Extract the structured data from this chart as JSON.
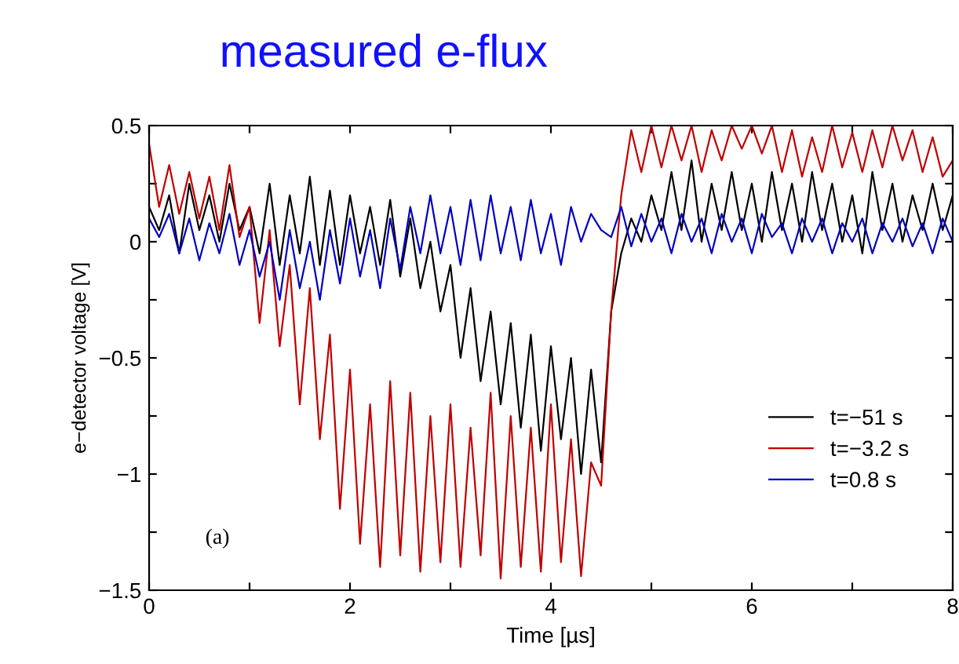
{
  "chart_data": {
    "type": "line",
    "title": "measured e-flux",
    "xlabel": "Time [µs]",
    "ylabel": "e−detector voltage [V]",
    "annotations": [
      "(a)"
    ],
    "x": [
      0.0,
      0.1,
      0.2,
      0.3,
      0.4,
      0.5,
      0.6,
      0.7,
      0.8,
      0.9,
      1.0,
      1.1,
      1.2,
      1.3,
      1.4,
      1.5,
      1.6,
      1.7,
      1.8,
      1.9,
      2.0,
      2.1,
      2.2,
      2.3,
      2.4,
      2.5,
      2.6,
      2.7,
      2.8,
      2.9,
      3.0,
      3.1,
      3.2,
      3.3,
      3.4,
      3.5,
      3.6,
      3.7,
      3.8,
      3.9,
      4.0,
      4.1,
      4.2,
      4.3,
      4.4,
      4.5,
      4.6,
      4.7,
      4.8,
      4.9,
      5.0,
      5.1,
      5.2,
      5.3,
      5.4,
      5.5,
      5.6,
      5.7,
      5.8,
      5.9,
      6.0,
      6.1,
      6.2,
      6.3,
      6.4,
      6.5,
      6.6,
      6.7,
      6.8,
      6.9,
      7.0,
      7.1,
      7.2,
      7.3,
      7.4,
      7.5,
      7.6,
      7.7,
      7.8,
      7.9,
      8.0
    ],
    "series": [
      {
        "name": "t=−51 s",
        "color": "#000000",
        "values": [
          0.15,
          0.05,
          0.2,
          -0.05,
          0.25,
          0.05,
          0.2,
          0.0,
          0.25,
          0.05,
          0.15,
          -0.05,
          0.25,
          -0.1,
          0.2,
          -0.05,
          0.28,
          -0.1,
          0.22,
          -0.1,
          0.2,
          -0.05,
          0.15,
          -0.1,
          0.18,
          -0.15,
          0.1,
          -0.2,
          0.0,
          -0.3,
          -0.1,
          -0.5,
          -0.2,
          -0.6,
          -0.3,
          -0.7,
          -0.35,
          -0.8,
          -0.4,
          -0.9,
          -0.45,
          -0.85,
          -0.5,
          -1.0,
          -0.55,
          -0.95,
          -0.3,
          -0.05,
          0.1,
          0.0,
          0.2,
          0.05,
          0.3,
          0.05,
          0.35,
          0.0,
          0.25,
          0.05,
          0.3,
          0.05,
          0.25,
          0.0,
          0.3,
          0.05,
          0.25,
          0.0,
          0.3,
          0.05,
          0.25,
          0.0,
          0.2,
          -0.05,
          0.3,
          0.05,
          0.25,
          0.0,
          0.2,
          0.05,
          0.25,
          0.05,
          0.2
        ]
      },
      {
        "name": "t=−3.2 s",
        "color": "#c00000",
        "values": [
          0.42,
          0.15,
          0.33,
          0.12,
          0.3,
          0.1,
          0.28,
          0.05,
          0.33,
          0.02,
          0.15,
          -0.35,
          0.05,
          -0.45,
          -0.1,
          -0.7,
          -0.2,
          -0.85,
          -0.4,
          -1.15,
          -0.55,
          -1.3,
          -0.7,
          -1.4,
          -0.6,
          -1.35,
          -0.65,
          -1.42,
          -0.75,
          -1.38,
          -0.7,
          -1.4,
          -0.8,
          -1.35,
          -0.65,
          -1.45,
          -0.75,
          -1.4,
          -0.8,
          -1.42,
          -0.7,
          -1.38,
          -0.85,
          -1.44,
          -0.95,
          -1.05,
          -0.3,
          0.2,
          0.48,
          0.3,
          0.5,
          0.32,
          0.5,
          0.35,
          0.5,
          0.3,
          0.48,
          0.35,
          0.5,
          0.4,
          0.5,
          0.38,
          0.5,
          0.3,
          0.48,
          0.28,
          0.45,
          0.3,
          0.5,
          0.32,
          0.47,
          0.3,
          0.48,
          0.32,
          0.5,
          0.35,
          0.48,
          0.3,
          0.45,
          0.28,
          0.35
        ]
      },
      {
        "name": "t=0.8 s",
        "color": "#0000c0",
        "values": [
          0.1,
          0.02,
          0.12,
          -0.05,
          0.1,
          -0.08,
          0.08,
          -0.05,
          0.12,
          -0.1,
          0.05,
          -0.15,
          0.0,
          -0.25,
          0.05,
          -0.2,
          0.0,
          -0.25,
          0.05,
          -0.18,
          0.1,
          -0.15,
          0.05,
          -0.2,
          0.1,
          -0.12,
          0.15,
          -0.05,
          0.2,
          -0.05,
          0.15,
          -0.1,
          0.18,
          -0.08,
          0.2,
          -0.05,
          0.15,
          -0.08,
          0.18,
          -0.05,
          0.12,
          -0.1,
          0.15,
          0.0,
          0.12,
          0.05,
          0.02,
          0.15,
          -0.02,
          0.12,
          0.0,
          0.1,
          -0.05,
          0.12,
          0.0,
          0.1,
          -0.05,
          0.12,
          0.0,
          0.1,
          -0.05,
          0.12,
          0.02,
          0.08,
          -0.05,
          0.1,
          0.0,
          0.1,
          -0.05,
          0.08,
          0.0,
          0.1,
          -0.05,
          0.08,
          0.0,
          0.1,
          -0.02,
          0.08,
          -0.05,
          0.1,
          0.0
        ]
      }
    ],
    "xlim": [
      0,
      8
    ],
    "xticks": [
      0,
      {
        "value": 1,
        "label": null
      },
      2,
      {
        "value": 3,
        "label": null
      },
      4,
      {
        "value": 5,
        "label": null
      },
      6,
      {
        "value": 7,
        "label": null
      },
      8
    ],
    "ylim": [
      -1.5,
      0.5
    ],
    "yticks": [
      {
        "value": -1.5,
        "label": "−1.5"
      },
      {
        "value": -1.25,
        "label": null
      },
      {
        "value": -1,
        "label": "−1"
      },
      {
        "value": -0.75,
        "label": null
      },
      {
        "value": -0.5,
        "label": "−0.5"
      },
      {
        "value": -0.25,
        "label": null
      },
      0,
      {
        "value": 0.25,
        "label": null
      },
      0.5
    ],
    "grid": false,
    "legend": "bottom right",
    "line_style": "solid",
    "marker": "none"
  }
}
